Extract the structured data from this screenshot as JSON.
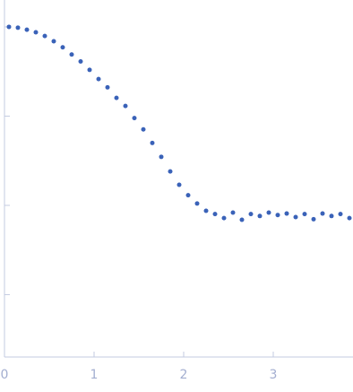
{
  "chart_data": {
    "type": "scatter",
    "log_y": true,
    "color": "#3a62b8",
    "xlim": [
      0,
      3.89
    ],
    "xticks": [
      0,
      1,
      2,
      3
    ],
    "ylim": [
      0.0002,
      2
    ],
    "yticks": [
      1,
      0.1,
      0.01,
      0.001
    ],
    "x": [
      0.05,
      0.15,
      0.25,
      0.35,
      0.45,
      0.55,
      0.65,
      0.75,
      0.85,
      0.95,
      1.05,
      1.15,
      1.25,
      1.35,
      1.45,
      1.55,
      1.65,
      1.75,
      1.85,
      1.95,
      2.05,
      2.15,
      2.25,
      2.35,
      2.45,
      2.55,
      2.65,
      2.75,
      2.85,
      2.95,
      3.05,
      3.15,
      3.25,
      3.35,
      3.45,
      3.55,
      3.65,
      3.75,
      3.85
    ],
    "values": [
      1.0,
      0.98,
      0.93,
      0.87,
      0.79,
      0.69,
      0.59,
      0.49,
      0.41,
      0.33,
      0.26,
      0.21,
      0.16,
      0.13,
      0.095,
      0.071,
      0.05,
      0.035,
      0.024,
      0.017,
      0.013,
      0.0105,
      0.0087,
      0.008,
      0.0072,
      0.0083,
      0.0069,
      0.008,
      0.0076,
      0.0083,
      0.0078,
      0.0081,
      0.0074,
      0.008,
      0.007,
      0.0081,
      0.0076,
      0.008,
      0.0072
    ]
  }
}
